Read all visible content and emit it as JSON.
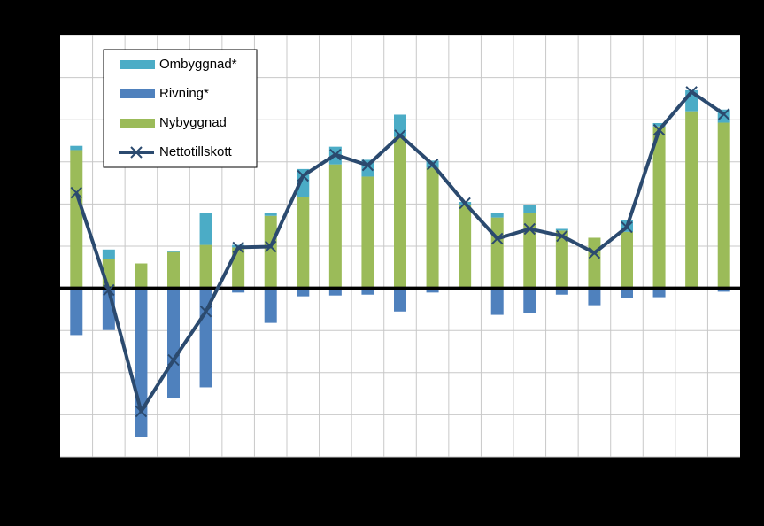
{
  "chart_data": {
    "type": "bar",
    "stacked": true,
    "categories": [
      null,
      null,
      null,
      null,
      null,
      null,
      null,
      null,
      null,
      null,
      null,
      null,
      null,
      null,
      null,
      null,
      null,
      null,
      null,
      null,
      null
    ],
    "ylim": [
      -4,
      6
    ],
    "yticks": [
      -4,
      -3,
      -2,
      -1,
      0,
      1,
      2,
      3,
      4,
      5,
      6
    ],
    "grid": true,
    "legend": "upper left",
    "series": [
      {
        "name": "Ombyggnad*",
        "color": "#4bacc6",
        "values": [
          0.1,
          0.23,
          0,
          0.02,
          0.76,
          0.06,
          0.06,
          0.67,
          0.42,
          0.4,
          0.53,
          0.17,
          0.08,
          0.1,
          0.19,
          0.04,
          0,
          0.29,
          0.08,
          0.5,
          0.31
        ]
      },
      {
        "name": "Rivning*",
        "color": "#4f81bd",
        "values": [
          -1.11,
          -0.99,
          -3.53,
          -2.61,
          -2.35,
          -0.1,
          -0.82,
          -0.19,
          -0.17,
          -0.15,
          -0.55,
          -0.1,
          0,
          -0.63,
          -0.59,
          -0.15,
          -0.4,
          -0.23,
          -0.21,
          0,
          -0.08
        ]
      },
      {
        "name": "Nybyggnad",
        "color": "#9bbb59",
        "values": [
          3.28,
          0.69,
          0.59,
          0.86,
          1.03,
          0.97,
          1.72,
          2.16,
          2.94,
          2.65,
          3.59,
          2.86,
          1.97,
          1.68,
          1.79,
          1.37,
          1.2,
          1.34,
          3.84,
          4.2,
          3.93
        ]
      },
      {
        "name": "Nettotillskott",
        "type": "line",
        "color": "#2b4a6f",
        "values": [
          2.27,
          -0.04,
          -2.92,
          -1.7,
          -0.55,
          0.97,
          0.99,
          2.67,
          3.17,
          2.92,
          3.63,
          2.94,
          2.02,
          1.18,
          1.41,
          1.24,
          0.84,
          1.45,
          3.76,
          4.66,
          4.13
        ]
      }
    ]
  }
}
